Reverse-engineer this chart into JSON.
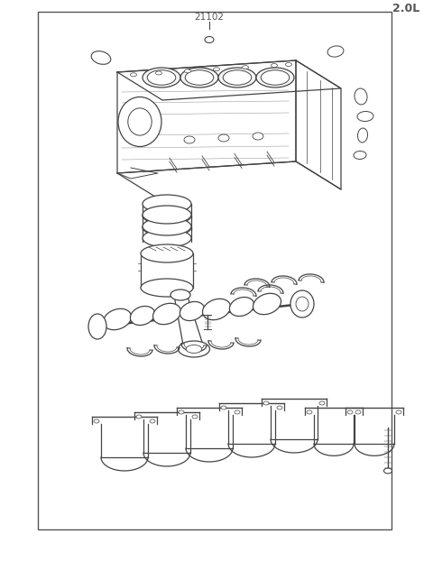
{
  "title_label": "21102",
  "engine_label": "2.0L",
  "bg_color": "#ffffff",
  "border_color": "#555555",
  "line_color": "#444444",
  "fig_width": 4.8,
  "fig_height": 6.22,
  "dpi": 100
}
